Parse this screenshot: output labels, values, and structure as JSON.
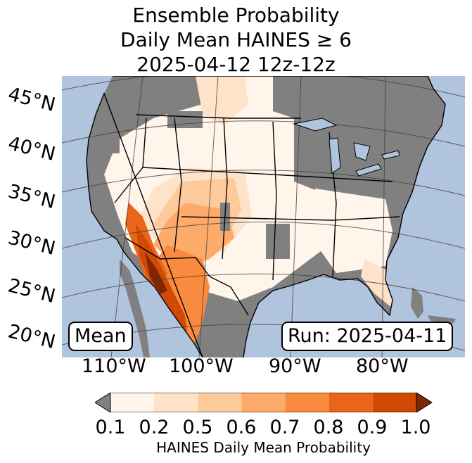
{
  "title": {
    "line1": "Ensemble Probability",
    "line2": "Daily Mean HAINES ≥ 6",
    "line3": "2025-04-12 12z-12z"
  },
  "map": {
    "lat_labels": [
      "45°N",
      "40°N",
      "35°N",
      "30°N",
      "25°N",
      "20°N"
    ],
    "lon_labels": [
      "110°W",
      "100°W",
      "90°W",
      "80°W"
    ],
    "stat_label": "Mean",
    "run_label": "Run: 2025-04-11",
    "colors": {
      "ocean": "#b0c4de",
      "land_below_threshold": "#808080",
      "boundaries": "#000000",
      "graticule": "#3a3a3a"
    }
  },
  "colorbar": {
    "label": "HAINES Daily Mean Probability",
    "ticks": [
      "0.1",
      "0.2",
      "0.5",
      "0.6",
      "0.7",
      "0.8",
      "0.9",
      "1.0"
    ],
    "bins": [
      {
        "from": 0.1,
        "to": 0.2,
        "color": "#fff5eb"
      },
      {
        "from": 0.2,
        "to": 0.5,
        "color": "#fee3c8"
      },
      {
        "from": 0.5,
        "to": 0.6,
        "color": "#fdcb9b"
      },
      {
        "from": 0.6,
        "to": 0.7,
        "color": "#fdaa6a"
      },
      {
        "from": 0.7,
        "to": 0.8,
        "color": "#f98a3e"
      },
      {
        "from": 0.8,
        "to": 0.9,
        "color": "#ea6519"
      },
      {
        "from": 0.9,
        "to": 1.0,
        "color": "#d04a04"
      }
    ],
    "under_color": "#808080",
    "over_color": "#7f2704"
  }
}
